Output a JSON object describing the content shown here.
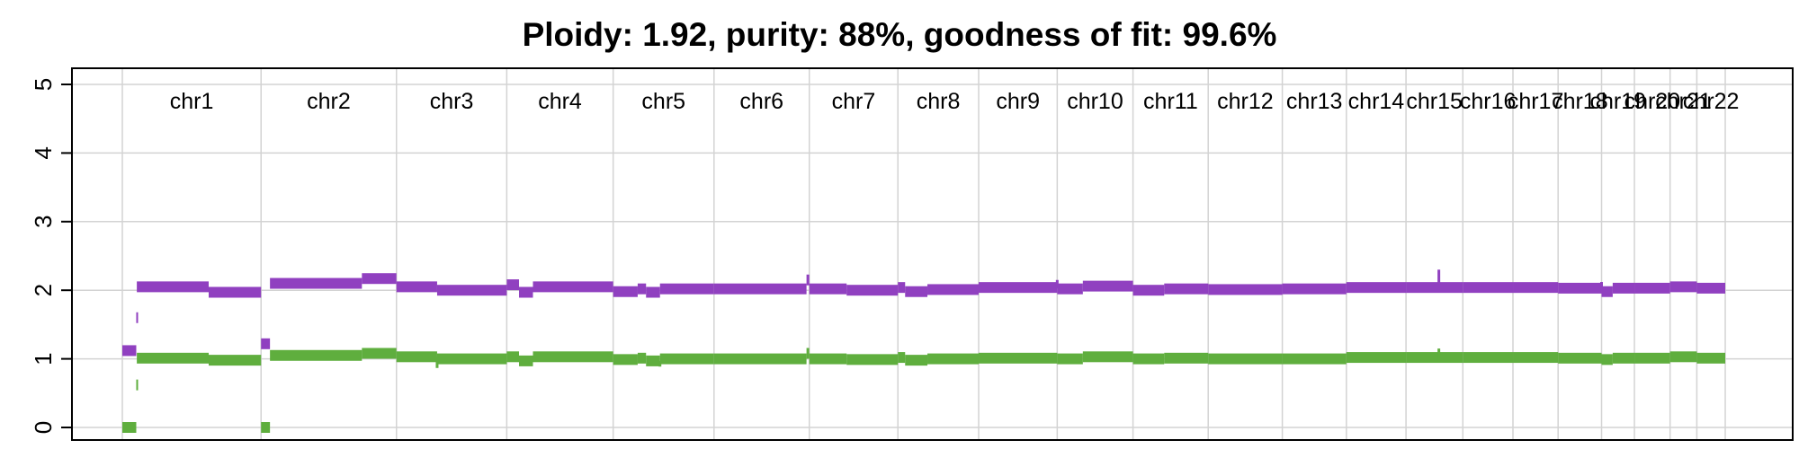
{
  "chart_data": {
    "type": "scatter",
    "title": "Ploidy: 1.92, purity: 88%, goodness of fit: 99.6%",
    "xlabel": "",
    "ylabel": "",
    "ylim": [
      0,
      5
    ],
    "y_ticks": [
      0,
      1,
      2,
      3,
      4,
      5
    ],
    "grid": true,
    "x_unit": "Mb (genome-wide, chromosomes concatenated)",
    "chromosomes": [
      {
        "name": "chr1",
        "start": 0,
        "end": 249
      },
      {
        "name": "chr2",
        "start": 249,
        "end": 492
      },
      {
        "name": "chr3",
        "start": 492,
        "end": 690
      },
      {
        "name": "chr4",
        "start": 690,
        "end": 881
      },
      {
        "name": "chr5",
        "start": 881,
        "end": 1062
      },
      {
        "name": "chr6",
        "start": 1062,
        "end": 1233
      },
      {
        "name": "chr7",
        "start": 1233,
        "end": 1392
      },
      {
        "name": "chr8",
        "start": 1392,
        "end": 1537
      },
      {
        "name": "chr9",
        "start": 1537,
        "end": 1678
      },
      {
        "name": "chr10",
        "start": 1678,
        "end": 1814
      },
      {
        "name": "chr11",
        "start": 1814,
        "end": 1949
      },
      {
        "name": "chr12",
        "start": 1949,
        "end": 2082
      },
      {
        "name": "chr13",
        "start": 2082,
        "end": 2197
      },
      {
        "name": "chr14",
        "start": 2197,
        "end": 2304
      },
      {
        "name": "chr15",
        "start": 2304,
        "end": 2406
      },
      {
        "name": "chr16",
        "start": 2406,
        "end": 2496
      },
      {
        "name": "chr17",
        "start": 2496,
        "end": 2577
      },
      {
        "name": "chr18",
        "start": 2577,
        "end": 2655
      },
      {
        "name": "chr19",
        "start": 2655,
        "end": 2714
      },
      {
        "name": "chr20",
        "start": 2714,
        "end": 2778
      },
      {
        "name": "chr21",
        "start": 2778,
        "end": 2826
      },
      {
        "name": "chr22",
        "start": 2826,
        "end": 2877
      }
    ],
    "series": [
      {
        "color": "#9040c0",
        "segments": [
          {
            "start": 0,
            "end": 25,
            "value": 1.12
          },
          {
            "start": 25,
            "end": 26,
            "value": 1.6
          },
          {
            "start": 26,
            "end": 155,
            "value": 2.05
          },
          {
            "start": 155,
            "end": 249,
            "value": 1.97
          },
          {
            "start": 249,
            "end": 265,
            "value": 1.22
          },
          {
            "start": 265,
            "end": 430,
            "value": 2.1
          },
          {
            "start": 430,
            "end": 492,
            "value": 2.17
          },
          {
            "start": 492,
            "end": 565,
            "value": 2.05
          },
          {
            "start": 565,
            "end": 690,
            "value": 2.0
          },
          {
            "start": 690,
            "end": 712,
            "value": 2.08
          },
          {
            "start": 712,
            "end": 737,
            "value": 1.97
          },
          {
            "start": 737,
            "end": 881,
            "value": 2.05
          },
          {
            "start": 881,
            "end": 925,
            "value": 1.98
          },
          {
            "start": 925,
            "end": 940,
            "value": 2.02
          },
          {
            "start": 940,
            "end": 965,
            "value": 1.97
          },
          {
            "start": 965,
            "end": 1062,
            "value": 2.02
          },
          {
            "start": 1062,
            "end": 1228,
            "value": 2.02
          },
          {
            "start": 1228,
            "end": 1233,
            "value": 2.15
          },
          {
            "start": 1233,
            "end": 1300,
            "value": 2.02
          },
          {
            "start": 1300,
            "end": 1392,
            "value": 2.0
          },
          {
            "start": 1392,
            "end": 1405,
            "value": 2.04
          },
          {
            "start": 1405,
            "end": 1445,
            "value": 1.98
          },
          {
            "start": 1445,
            "end": 1537,
            "value": 2.01
          },
          {
            "start": 1537,
            "end": 1678,
            "value": 2.04
          },
          {
            "start": 1678,
            "end": 1724,
            "value": 2.02
          },
          {
            "start": 1724,
            "end": 1814,
            "value": 2.06
          },
          {
            "start": 1814,
            "end": 1870,
            "value": 2.0
          },
          {
            "start": 1870,
            "end": 1949,
            "value": 2.02
          },
          {
            "start": 1949,
            "end": 2082,
            "value": 2.01
          },
          {
            "start": 2082,
            "end": 2197,
            "value": 2.02
          },
          {
            "start": 2197,
            "end": 2304,
            "value": 2.04
          },
          {
            "start": 2304,
            "end": 2406,
            "value": 2.04
          },
          {
            "start": 2406,
            "end": 2496,
            "value": 2.04
          },
          {
            "start": 2496,
            "end": 2577,
            "value": 2.04
          },
          {
            "start": 2577,
            "end": 2655,
            "value": 2.03
          },
          {
            "start": 2655,
            "end": 2675,
            "value": 1.98
          },
          {
            "start": 2675,
            "end": 2714,
            "value": 2.03
          },
          {
            "start": 2714,
            "end": 2778,
            "value": 2.03
          },
          {
            "start": 2778,
            "end": 2826,
            "value": 2.05
          },
          {
            "start": 2826,
            "end": 2877,
            "value": 2.03
          }
        ],
        "spikes": [
          {
            "x": 1678,
            "value": 2.15
          },
          {
            "x": 2363,
            "value": 2.3
          },
          {
            "x": 2655,
            "value": 2.12
          }
        ]
      },
      {
        "color": "#5fae3e",
        "segments": [
          {
            "start": 0,
            "end": 25,
            "value": 0.0
          },
          {
            "start": 25,
            "end": 26,
            "value": 0.62
          },
          {
            "start": 26,
            "end": 155,
            "value": 1.01
          },
          {
            "start": 155,
            "end": 249,
            "value": 0.98
          },
          {
            "start": 249,
            "end": 265,
            "value": 0.0
          },
          {
            "start": 265,
            "end": 430,
            "value": 1.05
          },
          {
            "start": 430,
            "end": 492,
            "value": 1.08
          },
          {
            "start": 492,
            "end": 565,
            "value": 1.03
          },
          {
            "start": 565,
            "end": 690,
            "value": 1.0
          },
          {
            "start": 690,
            "end": 712,
            "value": 1.03
          },
          {
            "start": 712,
            "end": 737,
            "value": 0.97
          },
          {
            "start": 737,
            "end": 881,
            "value": 1.03
          },
          {
            "start": 881,
            "end": 925,
            "value": 0.99
          },
          {
            "start": 925,
            "end": 940,
            "value": 1.01
          },
          {
            "start": 940,
            "end": 965,
            "value": 0.97
          },
          {
            "start": 965,
            "end": 1062,
            "value": 1.0
          },
          {
            "start": 1062,
            "end": 1228,
            "value": 1.0
          },
          {
            "start": 1228,
            "end": 1233,
            "value": 1.08
          },
          {
            "start": 1233,
            "end": 1300,
            "value": 1.0
          },
          {
            "start": 1300,
            "end": 1392,
            "value": 0.99
          },
          {
            "start": 1392,
            "end": 1405,
            "value": 1.02
          },
          {
            "start": 1405,
            "end": 1445,
            "value": 0.98
          },
          {
            "start": 1445,
            "end": 1537,
            "value": 1.0
          },
          {
            "start": 1537,
            "end": 1678,
            "value": 1.01
          },
          {
            "start": 1678,
            "end": 1724,
            "value": 1.0
          },
          {
            "start": 1724,
            "end": 1814,
            "value": 1.03
          },
          {
            "start": 1814,
            "end": 1870,
            "value": 1.0
          },
          {
            "start": 1870,
            "end": 1949,
            "value": 1.01
          },
          {
            "start": 1949,
            "end": 2082,
            "value": 1.0
          },
          {
            "start": 2082,
            "end": 2197,
            "value": 1.0
          },
          {
            "start": 2197,
            "end": 2304,
            "value": 1.02
          },
          {
            "start": 2304,
            "end": 2406,
            "value": 1.02
          },
          {
            "start": 2406,
            "end": 2496,
            "value": 1.02
          },
          {
            "start": 2496,
            "end": 2577,
            "value": 1.02
          },
          {
            "start": 2577,
            "end": 2655,
            "value": 1.01
          },
          {
            "start": 2655,
            "end": 2675,
            "value": 0.99
          },
          {
            "start": 2675,
            "end": 2714,
            "value": 1.01
          },
          {
            "start": 2714,
            "end": 2778,
            "value": 1.01
          },
          {
            "start": 2778,
            "end": 2826,
            "value": 1.03
          },
          {
            "start": 2826,
            "end": 2877,
            "value": 1.01
          }
        ],
        "spikes": [
          {
            "x": 565,
            "value": 0.88
          },
          {
            "x": 965,
            "value": 0.9
          },
          {
            "x": 2363,
            "value": 1.15
          }
        ]
      }
    ]
  }
}
